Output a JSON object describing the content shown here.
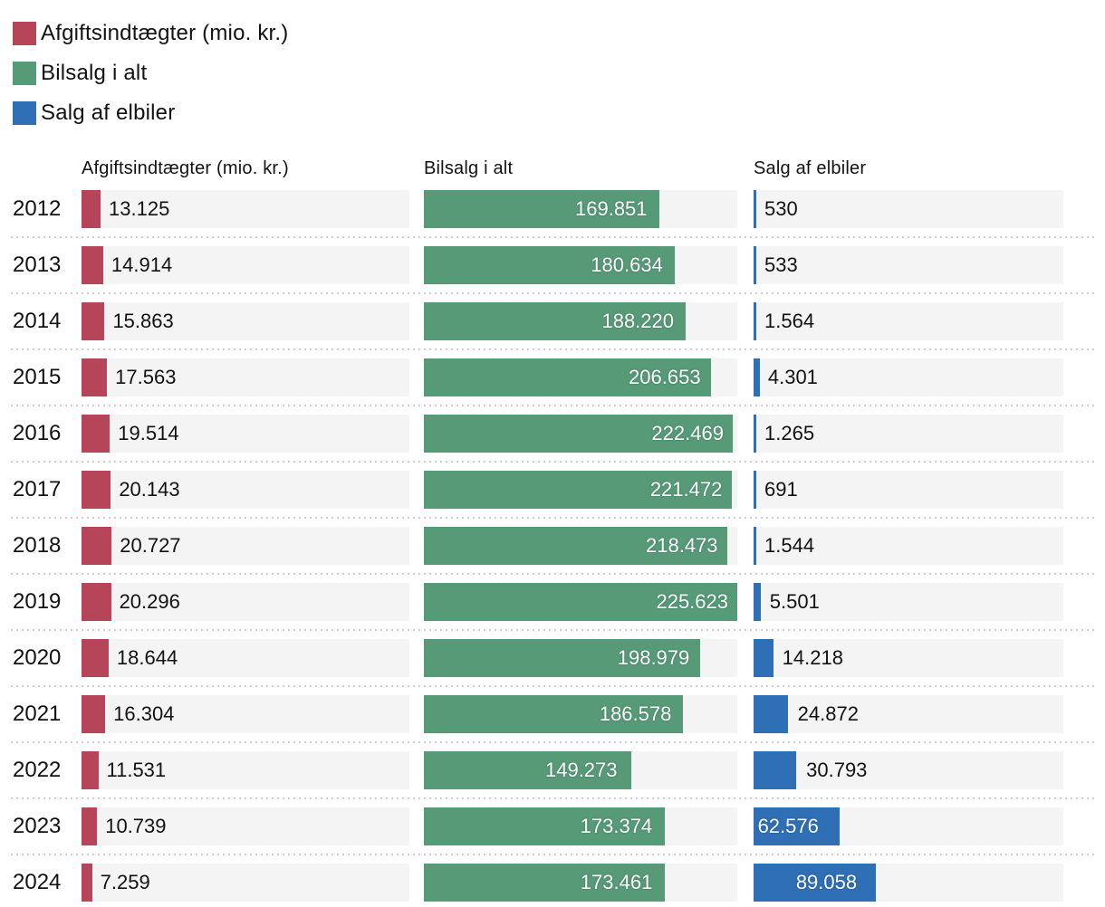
{
  "accent_colors": {
    "red": "#b7455a",
    "green": "#569a78",
    "blue": "#2f6fb5",
    "track": "#f4f4f4",
    "separator": "#cfcfcf",
    "text": "#121212",
    "bar_label_inside": "#ffffff"
  },
  "legend": {
    "items": [
      {
        "label": "Afgiftsindtægter (mio. kr.)",
        "color": "#b7455a"
      },
      {
        "label": "Bilsalg i alt",
        "color": "#569a78"
      },
      {
        "label": "Salg af elbiler",
        "color": "#2f6fb5"
      }
    ]
  },
  "table": {
    "headers": [
      "Afgiftsindtægter (mio. kr.)",
      "Bilsalg i alt",
      "Salg af elbiler"
    ]
  },
  "chart_data": {
    "type": "bar",
    "orientation": "horizontal",
    "title": "",
    "xlabel": "",
    "ylabel": "",
    "xlim": [
      0,
      225623
    ],
    "grid": false,
    "legend_position": "top-left",
    "categories": [
      "2012",
      "2013",
      "2014",
      "2015",
      "2016",
      "2017",
      "2018",
      "2019",
      "2020",
      "2021",
      "2022",
      "2023",
      "2024"
    ],
    "series": [
      {
        "name": "Afgiftsindtægter (mio. kr.)",
        "color": "#b7455a",
        "values": [
          13125,
          14914,
          15863,
          17563,
          19514,
          20143,
          20727,
          20296,
          18644,
          16304,
          11531,
          10739,
          7259
        ],
        "labels": [
          "13.125",
          "14.914",
          "15.863",
          "17.563",
          "19.514",
          "20.143",
          "20.727",
          "20.296",
          "18.644",
          "16.304",
          "11.531",
          "10.739",
          "7.259"
        ]
      },
      {
        "name": "Bilsalg i alt",
        "color": "#569a78",
        "values": [
          169851,
          180634,
          188220,
          206653,
          222469,
          221472,
          218473,
          225623,
          198979,
          186578,
          149273,
          173374,
          173461
        ],
        "labels": [
          "169.851",
          "180.634",
          "188.220",
          "206.653",
          "222.469",
          "221.472",
          "218.473",
          "225.623",
          "198.979",
          "186.578",
          "149.273",
          "173.374",
          "173.461"
        ]
      },
      {
        "name": "Salg af elbiler",
        "color": "#2f6fb5",
        "values": [
          530,
          533,
          1564,
          4301,
          1265,
          691,
          1544,
          5501,
          14218,
          24872,
          30793,
          62576,
          89058
        ],
        "labels": [
          "530",
          "533",
          "1.564",
          "4.301",
          "1.265",
          "691",
          "1.544",
          "5.501",
          "14.218",
          "24.872",
          "30.793",
          "62.576",
          "89.058"
        ]
      }
    ]
  }
}
